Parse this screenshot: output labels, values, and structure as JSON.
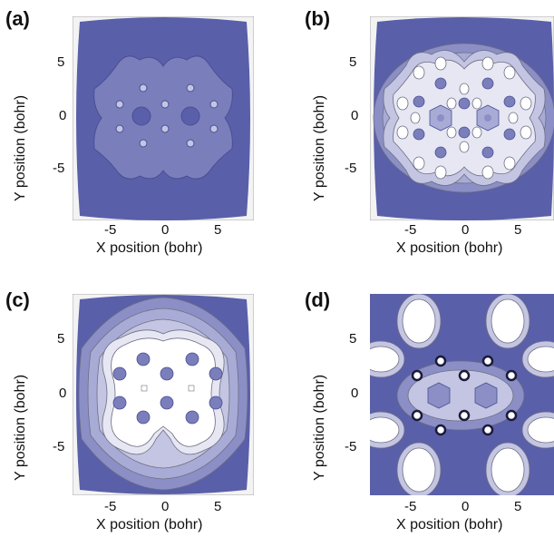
{
  "axes": {
    "x_label": "X position (bohr)",
    "y_label": "Y position (bohr)",
    "x_ticks": [
      "-5",
      "0",
      "5"
    ],
    "y_ticks": [
      "5",
      "0",
      "-5"
    ]
  },
  "panels": [
    {
      "label": "(a)"
    },
    {
      "label": "(b)"
    },
    {
      "label": "(c)"
    },
    {
      "label": "(d)"
    }
  ],
  "colors": {
    "deep": "#5a5fa9",
    "mid": "#8b8fc6",
    "light": "#c3c5e2",
    "pale": "#e6e7f3",
    "white": "#ffffff",
    "line": "#6e6e82"
  }
}
